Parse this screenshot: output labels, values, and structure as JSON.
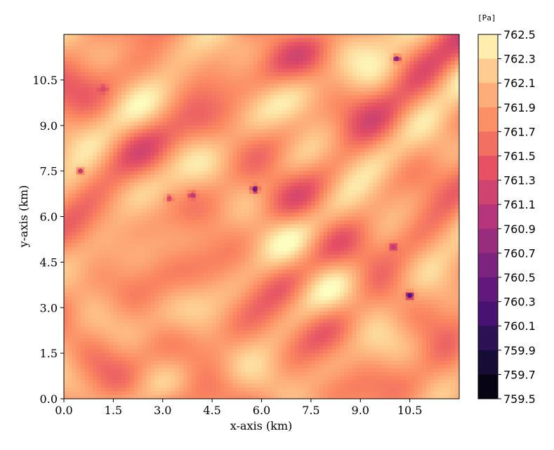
{
  "chart_data": {
    "type": "heatmap",
    "title": "",
    "xlabel": "x-axis (km)",
    "ylabel": "y-axis (km)",
    "xlim": [
      0,
      12
    ],
    "ylim": [
      0,
      12
    ],
    "x_ticks": [
      "0.0",
      "1.5",
      "3.0",
      "4.5",
      "6.0",
      "7.5",
      "9.0",
      "10.5"
    ],
    "y_ticks": [
      "0.0",
      "1.5",
      "3.0",
      "4.5",
      "6.0",
      "7.5",
      "9.0",
      "10.5"
    ],
    "colorbar": {
      "unit": "[Pa]",
      "colormap": "magma",
      "range": [
        759.5,
        762.5
      ],
      "ticks": [
        "762.5",
        "762.3",
        "762.1",
        "761.9",
        "761.7",
        "761.5",
        "761.3",
        "761.1",
        "760.9",
        "760.7",
        "760.5",
        "760.3",
        "760.1",
        "759.9",
        "759.7",
        "759.5"
      ]
    },
    "field_mean": 761.9,
    "low_spots": [
      {
        "x": 10.5,
        "y": 3.4,
        "value": 760.3
      },
      {
        "x": 5.8,
        "y": 6.9,
        "value": 760.5
      },
      {
        "x": 10.1,
        "y": 11.2,
        "value": 760.7
      },
      {
        "x": 0.5,
        "y": 7.5,
        "value": 761.1
      },
      {
        "x": 3.9,
        "y": 6.7,
        "value": 761.1
      },
      {
        "x": 1.2,
        "y": 10.2,
        "value": 761.3
      },
      {
        "x": 3.2,
        "y": 6.6,
        "value": 761.3
      },
      {
        "x": 10.0,
        "y": 5.0,
        "value": 761.1
      }
    ],
    "grid": false
  }
}
